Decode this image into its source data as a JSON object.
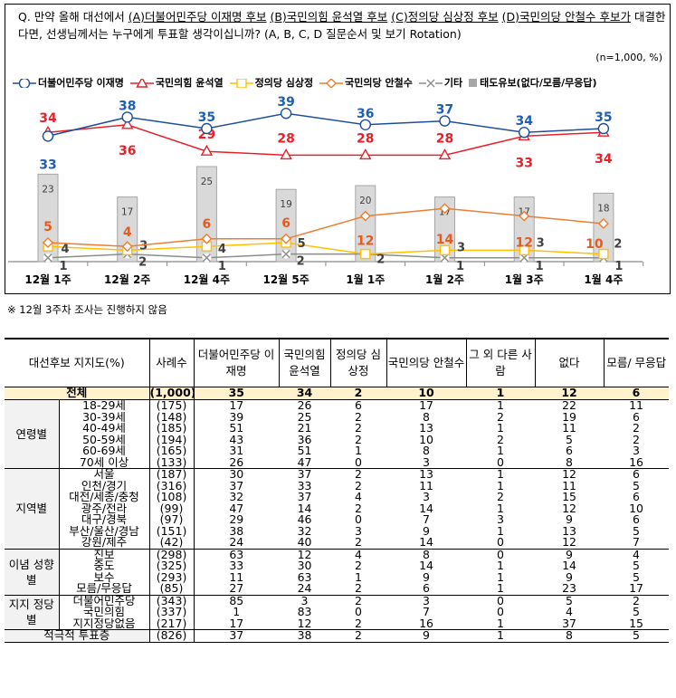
{
  "question": {
    "prefix": "Q. 만약 올해 대선에서 ",
    "a": "(A)더불어민주당 이재명 후보",
    "b": "(B)국민의힘 윤석열 후보",
    "c": "(C)정의당 심상정 후보",
    "d": "(D)국민의당 안철수 후보가",
    "suffix": " 대결한다면, 선생님께서는 누구에게 투표할 생각이십니까? (A, B, C, D 질문순서 및 보기 Rotation)",
    "sample": "(n=1,000, %)"
  },
  "chart_data": {
    "type": "line",
    "categories": [
      "12월 1주",
      "12월 2주",
      "12월 4주",
      "12월 5주",
      "1월 1주",
      "1월 2주",
      "1월 3주",
      "1월 4주"
    ],
    "series": [
      {
        "name": "더불어민주당 이재명",
        "type": "line",
        "color": "#1f4e9c",
        "marker": "circle",
        "values": [
          33,
          38,
          35,
          39,
          36,
          37,
          34,
          35
        ]
      },
      {
        "name": "국민의힘 윤석열",
        "type": "line",
        "color": "#e8202a",
        "marker": "triangle",
        "values": [
          34,
          36,
          29,
          28,
          28,
          28,
          33,
          34
        ]
      },
      {
        "name": "정의당 심상정",
        "type": "line",
        "color": "#ffc000",
        "marker": "square",
        "values": [
          4,
          3,
          4,
          5,
          2,
          3,
          3,
          2
        ]
      },
      {
        "name": "국민의당 안철수",
        "type": "line",
        "color": "#ed7d31",
        "marker": "diamond",
        "values": [
          5,
          4,
          6,
          6,
          12,
          14,
          12,
          10
        ]
      },
      {
        "name": "기타",
        "type": "line",
        "color": "#8c8c8c",
        "marker": "x",
        "values": [
          1,
          2,
          1,
          2,
          2,
          1,
          1,
          1
        ]
      },
      {
        "name": "태도유보(없다/모름/무응답)",
        "type": "bar",
        "color": "#d9d9d9",
        "values": [
          23,
          17,
          25,
          19,
          20,
          17,
          17,
          18
        ]
      }
    ],
    "grid": false,
    "legend": "top"
  },
  "note": "※ 12월 3주차 조사는 진행하지 않음",
  "table": {
    "headers": [
      "대선후보 지지도(%)",
      "사례수",
      "더불어민주당 이재명",
      "국민의힘 윤석열",
      "정의당 심상정",
      "국민의당 안철수",
      "그 외 다른 사람",
      "없다",
      "모름/ 무응답"
    ],
    "total": {
      "label": "전체",
      "n": "(1,000)",
      "values": [
        "35",
        "34",
        "2",
        "10",
        "1",
        "12",
        "6"
      ]
    },
    "groups": [
      {
        "name": "연령별",
        "rows": [
          {
            "label": "18-29세",
            "n": "(175)",
            "values": [
              "17",
              "26",
              "6",
              "17",
              "1",
              "22",
              "11"
            ]
          },
          {
            "label": "30-39세",
            "n": "(148)",
            "values": [
              "39",
              "25",
              "2",
              "8",
              "2",
              "19",
              "6"
            ]
          },
          {
            "label": "40-49세",
            "n": "(185)",
            "values": [
              "51",
              "21",
              "2",
              "13",
              "1",
              "11",
              "2"
            ]
          },
          {
            "label": "50-59세",
            "n": "(194)",
            "values": [
              "43",
              "36",
              "2",
              "10",
              "2",
              "5",
              "2"
            ]
          },
          {
            "label": "60-69세",
            "n": "(165)",
            "values": [
              "31",
              "51",
              "1",
              "8",
              "1",
              "6",
              "3"
            ]
          },
          {
            "label": "70세 이상",
            "n": "(133)",
            "values": [
              "26",
              "47",
              "0",
              "3",
              "0",
              "8",
              "16"
            ]
          }
        ]
      },
      {
        "name": "지역별",
        "rows": [
          {
            "label": "서울",
            "n": "(187)",
            "values": [
              "30",
              "37",
              "2",
              "13",
              "1",
              "12",
              "6"
            ]
          },
          {
            "label": "인천/경기",
            "n": "(316)",
            "values": [
              "37",
              "33",
              "2",
              "11",
              "1",
              "11",
              "5"
            ]
          },
          {
            "label": "대전/세종/충청",
            "n": "(108)",
            "values": [
              "32",
              "37",
              "4",
              "3",
              "2",
              "15",
              "6"
            ]
          },
          {
            "label": "광주/전라",
            "n": "(99)",
            "values": [
              "47",
              "14",
              "2",
              "14",
              "1",
              "12",
              "10"
            ]
          },
          {
            "label": "대구/경북",
            "n": "(97)",
            "values": [
              "29",
              "46",
              "0",
              "7",
              "3",
              "9",
              "6"
            ]
          },
          {
            "label": "부산/울산/경남",
            "n": "(151)",
            "values": [
              "38",
              "32",
              "3",
              "9",
              "1",
              "13",
              "5"
            ]
          },
          {
            "label": "강원/제주",
            "n": "(42)",
            "values": [
              "24",
              "40",
              "2",
              "14",
              "0",
              "12",
              "7"
            ]
          }
        ]
      },
      {
        "name": "이념 성향별",
        "rows": [
          {
            "label": "진보",
            "n": "(298)",
            "values": [
              "63",
              "12",
              "4",
              "8",
              "0",
              "9",
              "4"
            ]
          },
          {
            "label": "중도",
            "n": "(325)",
            "values": [
              "33",
              "30",
              "2",
              "14",
              "1",
              "14",
              "5"
            ]
          },
          {
            "label": "보수",
            "n": "(293)",
            "values": [
              "11",
              "63",
              "1",
              "9",
              "1",
              "9",
              "5"
            ]
          },
          {
            "label": "모름/무응답",
            "n": "(85)",
            "values": [
              "27",
              "24",
              "2",
              "6",
              "1",
              "23",
              "17"
            ]
          }
        ]
      },
      {
        "name": "지지 정당별",
        "rows": [
          {
            "label": "더불어민주당",
            "n": "(343)",
            "values": [
              "85",
              "3",
              "2",
              "3",
              "0",
              "5",
              "2"
            ]
          },
          {
            "label": "국민의힘",
            "n": "(337)",
            "values": [
              "1",
              "83",
              "0",
              "7",
              "0",
              "4",
              "5"
            ]
          },
          {
            "label": "지지정당없음",
            "n": "(217)",
            "values": [
              "17",
              "12",
              "2",
              "16",
              "1",
              "37",
              "15"
            ]
          }
        ]
      }
    ],
    "active": {
      "label": "적극적 투표층",
      "n": "(826)",
      "values": [
        "37",
        "38",
        "2",
        "9",
        "1",
        "8",
        "5"
      ]
    }
  }
}
